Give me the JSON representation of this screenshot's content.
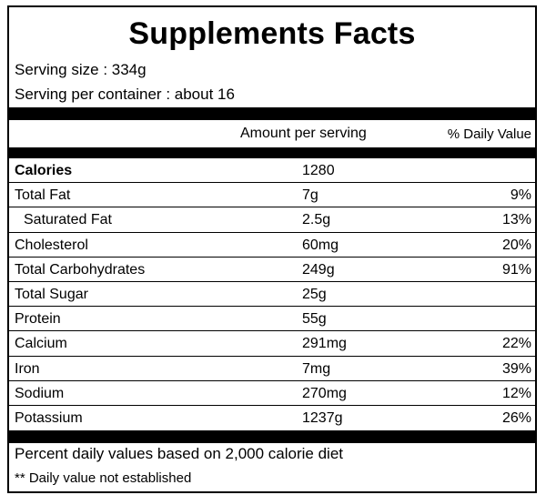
{
  "title": "Supplements Facts",
  "serving_size": "Serving size : 334g",
  "serving_per_container": "Serving per container : about 16",
  "header": {
    "amount": "Amount per serving",
    "daily_value": "% Daily Value"
  },
  "nutrients": [
    {
      "name": "Calories",
      "amount": "1280",
      "dv": ""
    },
    {
      "name": "Total Fat",
      "amount": "7g",
      "dv": "9%"
    },
    {
      "name": "Saturated Fat",
      "amount": "2.5g",
      "dv": "13%"
    },
    {
      "name": "Cholesterol",
      "amount": "60mg",
      "dv": "20%"
    },
    {
      "name": "Total Carbohydrates",
      "amount": "249g",
      "dv": "91%"
    },
    {
      "name": "Total Sugar",
      "amount": "25g",
      "dv": ""
    },
    {
      "name": "Protein",
      "amount": "55g",
      "dv": ""
    },
    {
      "name": "Calcium",
      "amount": "291mg",
      "dv": "22%"
    },
    {
      "name": "Iron",
      "amount": "7mg",
      "dv": "39%"
    },
    {
      "name": "Sodium",
      "amount": "270mg",
      "dv": "12%"
    },
    {
      "name": "Potassium",
      "amount": "1237g",
      "dv": "26%"
    }
  ],
  "footer": {
    "note1": "Percent daily values based on 2,000 calorie diet",
    "note2": "** Daily value not established"
  }
}
